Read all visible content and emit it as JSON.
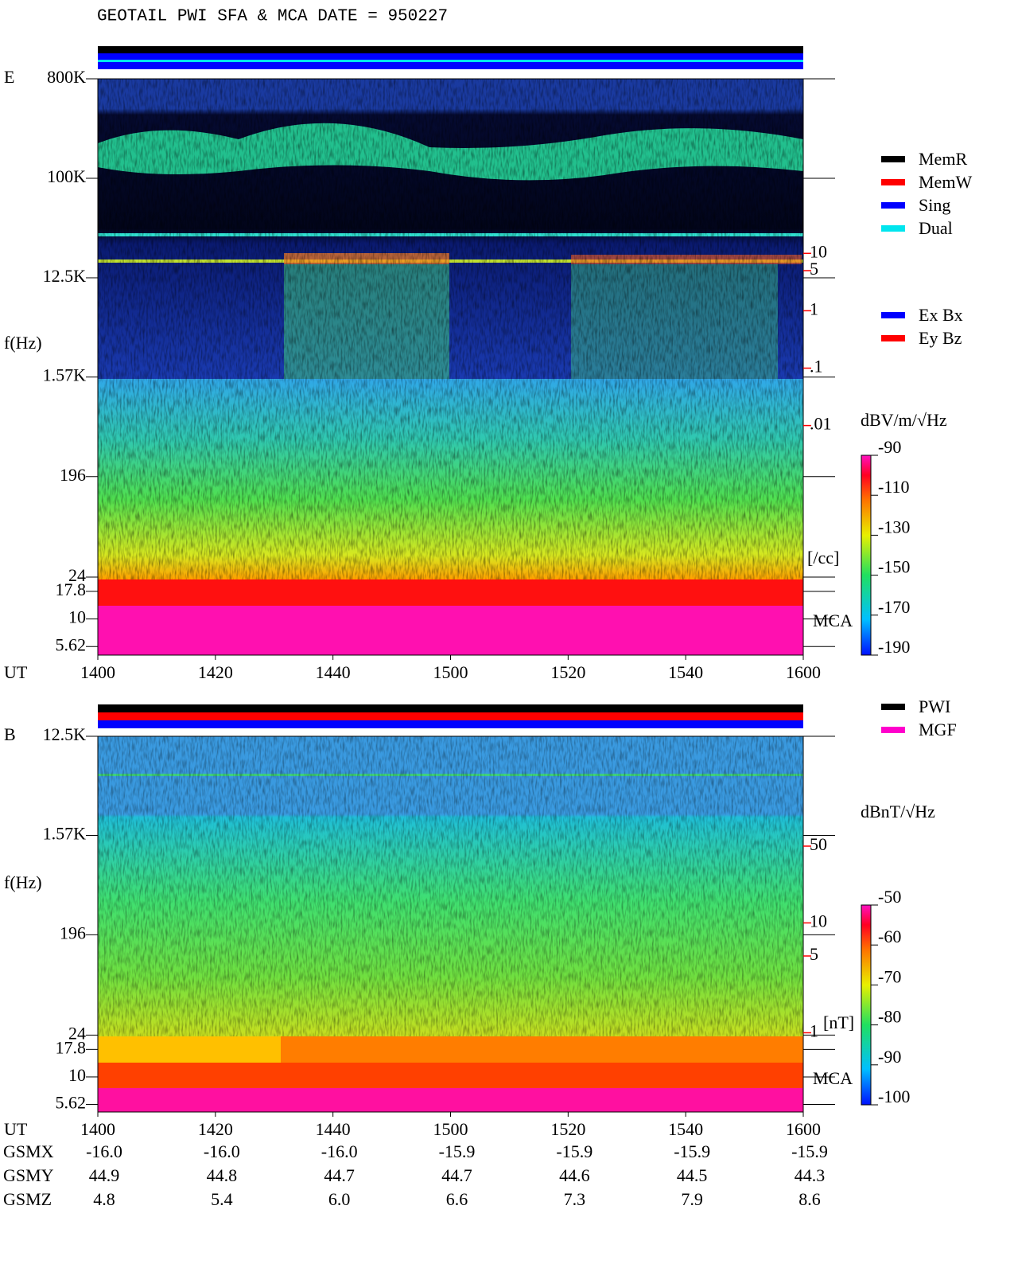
{
  "title": "GEOTAIL  PWI SFA & MCA   DATE = 950227",
  "chart_data": [
    {
      "type": "spectrogram",
      "panel_label": "E",
      "ylabel": "f(Hz)",
      "xlabel": "UT",
      "categories": [
        "1400",
        "1420",
        "1440",
        "1500",
        "1520",
        "1540",
        "1600"
      ],
      "ylim": [
        4.7,
        800000
      ],
      "yscale": "log",
      "yticks": [
        {
          "value": 800000,
          "label": "800K"
        },
        {
          "value": 100000,
          "label": "100K"
        },
        {
          "value": 12500,
          "label": "12.5K"
        },
        {
          "value": 1570,
          "label": "1.57K"
        },
        196,
        24,
        17.8,
        10,
        5.62
      ],
      "y2lim": [
        1e-06,
        11000
      ],
      "y2scale": "log",
      "y2ticks": [
        10,
        5,
        1,
        {
          "value": 0.1,
          "label": ".1"
        },
        {
          "value": 0.01,
          "label": ".01"
        }
      ],
      "y2label": "[/cc]",
      "section_label": "MCA",
      "legends": [
        [
          {
            "name": "MemR",
            "color": "#000000"
          },
          {
            "name": "MemW",
            "color": "#ff0000"
          },
          {
            "name": "Sing",
            "color": "#0000ff"
          },
          {
            "name": "Dual",
            "color": "#00e5ee"
          }
        ],
        [
          {
            "name": "Ex Bx",
            "color": "#0000ff"
          },
          {
            "name": "Ey Bz",
            "color": "#ff0000"
          }
        ]
      ],
      "colorbar": {
        "label": "dBV/m/√Hz",
        "clim": [
          -190,
          -90
        ],
        "ticks": [
          -90,
          -110,
          -130,
          -150,
          -170,
          -190
        ]
      }
    },
    {
      "type": "spectrogram",
      "panel_label": "B",
      "ylabel": "f(Hz)",
      "xlabel": "UT",
      "categories": [
        "1400",
        "1420",
        "1440",
        "1500",
        "1520",
        "1540",
        "1600"
      ],
      "ylim": [
        4.8,
        12500
      ],
      "yscale": "log",
      "yticks": [
        {
          "value": 12500,
          "label": "12.5K"
        },
        {
          "value": 1570,
          "label": "1.57K"
        },
        196,
        24,
        17.8,
        10,
        5.62
      ],
      "y2lim": [
        0.19,
        500
      ],
      "y2scale": "log",
      "y2ticks": [
        50,
        10,
        5,
        1
      ],
      "y2label": "[nT]",
      "section_label": "MCA",
      "legends": [
        [
          {
            "name": "PWI",
            "color": "#000000"
          },
          {
            "name": "MGF",
            "color": "#ff00cc"
          }
        ]
      ],
      "colorbar": {
        "label": "dBnT/√Hz",
        "clim": [
          -100,
          -50
        ],
        "ticks": [
          -50,
          -60,
          -70,
          -80,
          -90,
          -100
        ]
      }
    }
  ],
  "orbit": {
    "rows": [
      {
        "label": "GSMX",
        "values": [
          "-16.0",
          "-16.0",
          "-16.0",
          "-15.9",
          "-15.9",
          "-15.9",
          "-15.9"
        ]
      },
      {
        "label": "GSMY",
        "values": [
          "44.9",
          "44.8",
          "44.7",
          "44.7",
          "44.6",
          "44.5",
          "44.3"
        ]
      },
      {
        "label": "GSMZ",
        "values": [
          "4.8",
          "5.4",
          "6.0",
          "6.6",
          "7.3",
          "7.9",
          "8.6"
        ]
      }
    ]
  }
}
